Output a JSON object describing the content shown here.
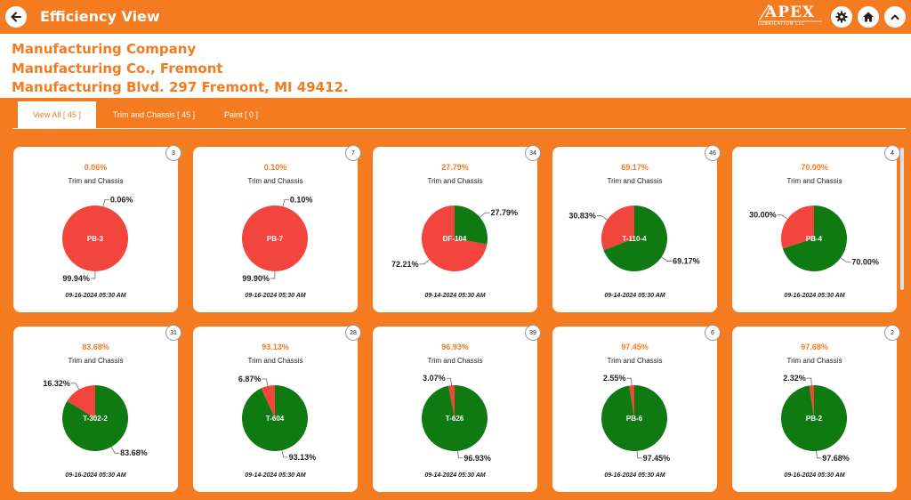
{
  "app": {
    "title": "Efficiency View"
  },
  "brand": {
    "logo_main": "APEX",
    "logo_sub": "LUBRICATION LLC"
  },
  "icons": {
    "back": "back-arrow-icon",
    "settings": "gear-icon",
    "home": "home-icon",
    "collapse": "chevron-up-icon"
  },
  "company": {
    "name": "Manufacturing Company",
    "branch": "Manufacturing Co., Fremont",
    "address": "Manufacturing Blvd. 297 Fremont, MI 49412."
  },
  "tabs": [
    {
      "label": "View All [ 45 ]",
      "active": true
    },
    {
      "label": "Trim and Chassis [ 45 ]",
      "active": false
    },
    {
      "label": "Paint [ 0 ]",
      "active": false
    }
  ],
  "colors": {
    "accent": "#f47b20",
    "good": "#0f7a12",
    "bad": "#f2453d"
  },
  "cards": [
    {
      "badge": "3",
      "pct": "0.06%",
      "category": "Trim and Chassis",
      "center": "PB-3",
      "green": 0.06,
      "red": 99.94,
      "green_label": "0.06%",
      "red_label": "99.94%",
      "date": "09-16-2024  05:30 AM"
    },
    {
      "badge": "7",
      "pct": "0.10%",
      "category": "Trim and Chassis",
      "center": "PB-7",
      "green": 0.1,
      "red": 99.9,
      "green_label": "0.10%",
      "red_label": "99.90%",
      "date": "09-16-2024  05:30 AM"
    },
    {
      "badge": "34",
      "pct": "27.79%",
      "category": "Trim and Chassis",
      "center": "DF-104",
      "green": 27.79,
      "red": 72.21,
      "green_label": "27.79%",
      "red_label": "72.21%",
      "date": "09-14-2024  05:30 AM"
    },
    {
      "badge": "46",
      "pct": "69.17%",
      "category": "Trim and Chassis",
      "center": "T-110-4",
      "green": 69.17,
      "red": 30.83,
      "green_label": "69.17%",
      "red_label": "30.83%",
      "date": "09-14-2024  05:30 AM"
    },
    {
      "badge": "4",
      "pct": "70.00%",
      "category": "Trim and Chassis",
      "center": "PB-4",
      "green": 70.0,
      "red": 30.0,
      "green_label": "70.00%",
      "red_label": "30.00%",
      "date": "09-16-2024  05:30 AM"
    },
    {
      "badge": "31",
      "pct": "83.68%",
      "category": "Trim and Chassis",
      "center": "T-302-2",
      "green": 83.68,
      "red": 16.32,
      "green_label": "83.68%",
      "red_label": "16.32%",
      "date": "09-16-2024  05:30 AM"
    },
    {
      "badge": "28",
      "pct": "93.13%",
      "category": "Trim and Chassis",
      "center": "T-604",
      "green": 93.13,
      "red": 6.87,
      "green_label": "93.13%",
      "red_label": "6.87%",
      "date": "09-14-2024  05:30 AM"
    },
    {
      "badge": "39",
      "pct": "96.93%",
      "category": "Trim and Chassis",
      "center": "T-626",
      "green": 96.93,
      "red": 3.07,
      "green_label": "96.93%",
      "red_label": "3.07%",
      "date": "09-14-2024  05:30 AM"
    },
    {
      "badge": "6",
      "pct": "97.45%",
      "category": "Trim and Chassis",
      "center": "PB-6",
      "green": 97.45,
      "red": 2.55,
      "green_label": "97.45%",
      "red_label": "2.55%",
      "date": "09-16-2024  05:30 AM"
    },
    {
      "badge": "2",
      "pct": "97.68%",
      "category": "Trim and Chassis",
      "center": "PB-2",
      "green": 97.68,
      "red": 2.32,
      "green_label": "97.68%",
      "red_label": "2.32%",
      "date": "09-16-2024  05:30 AM"
    }
  ]
}
